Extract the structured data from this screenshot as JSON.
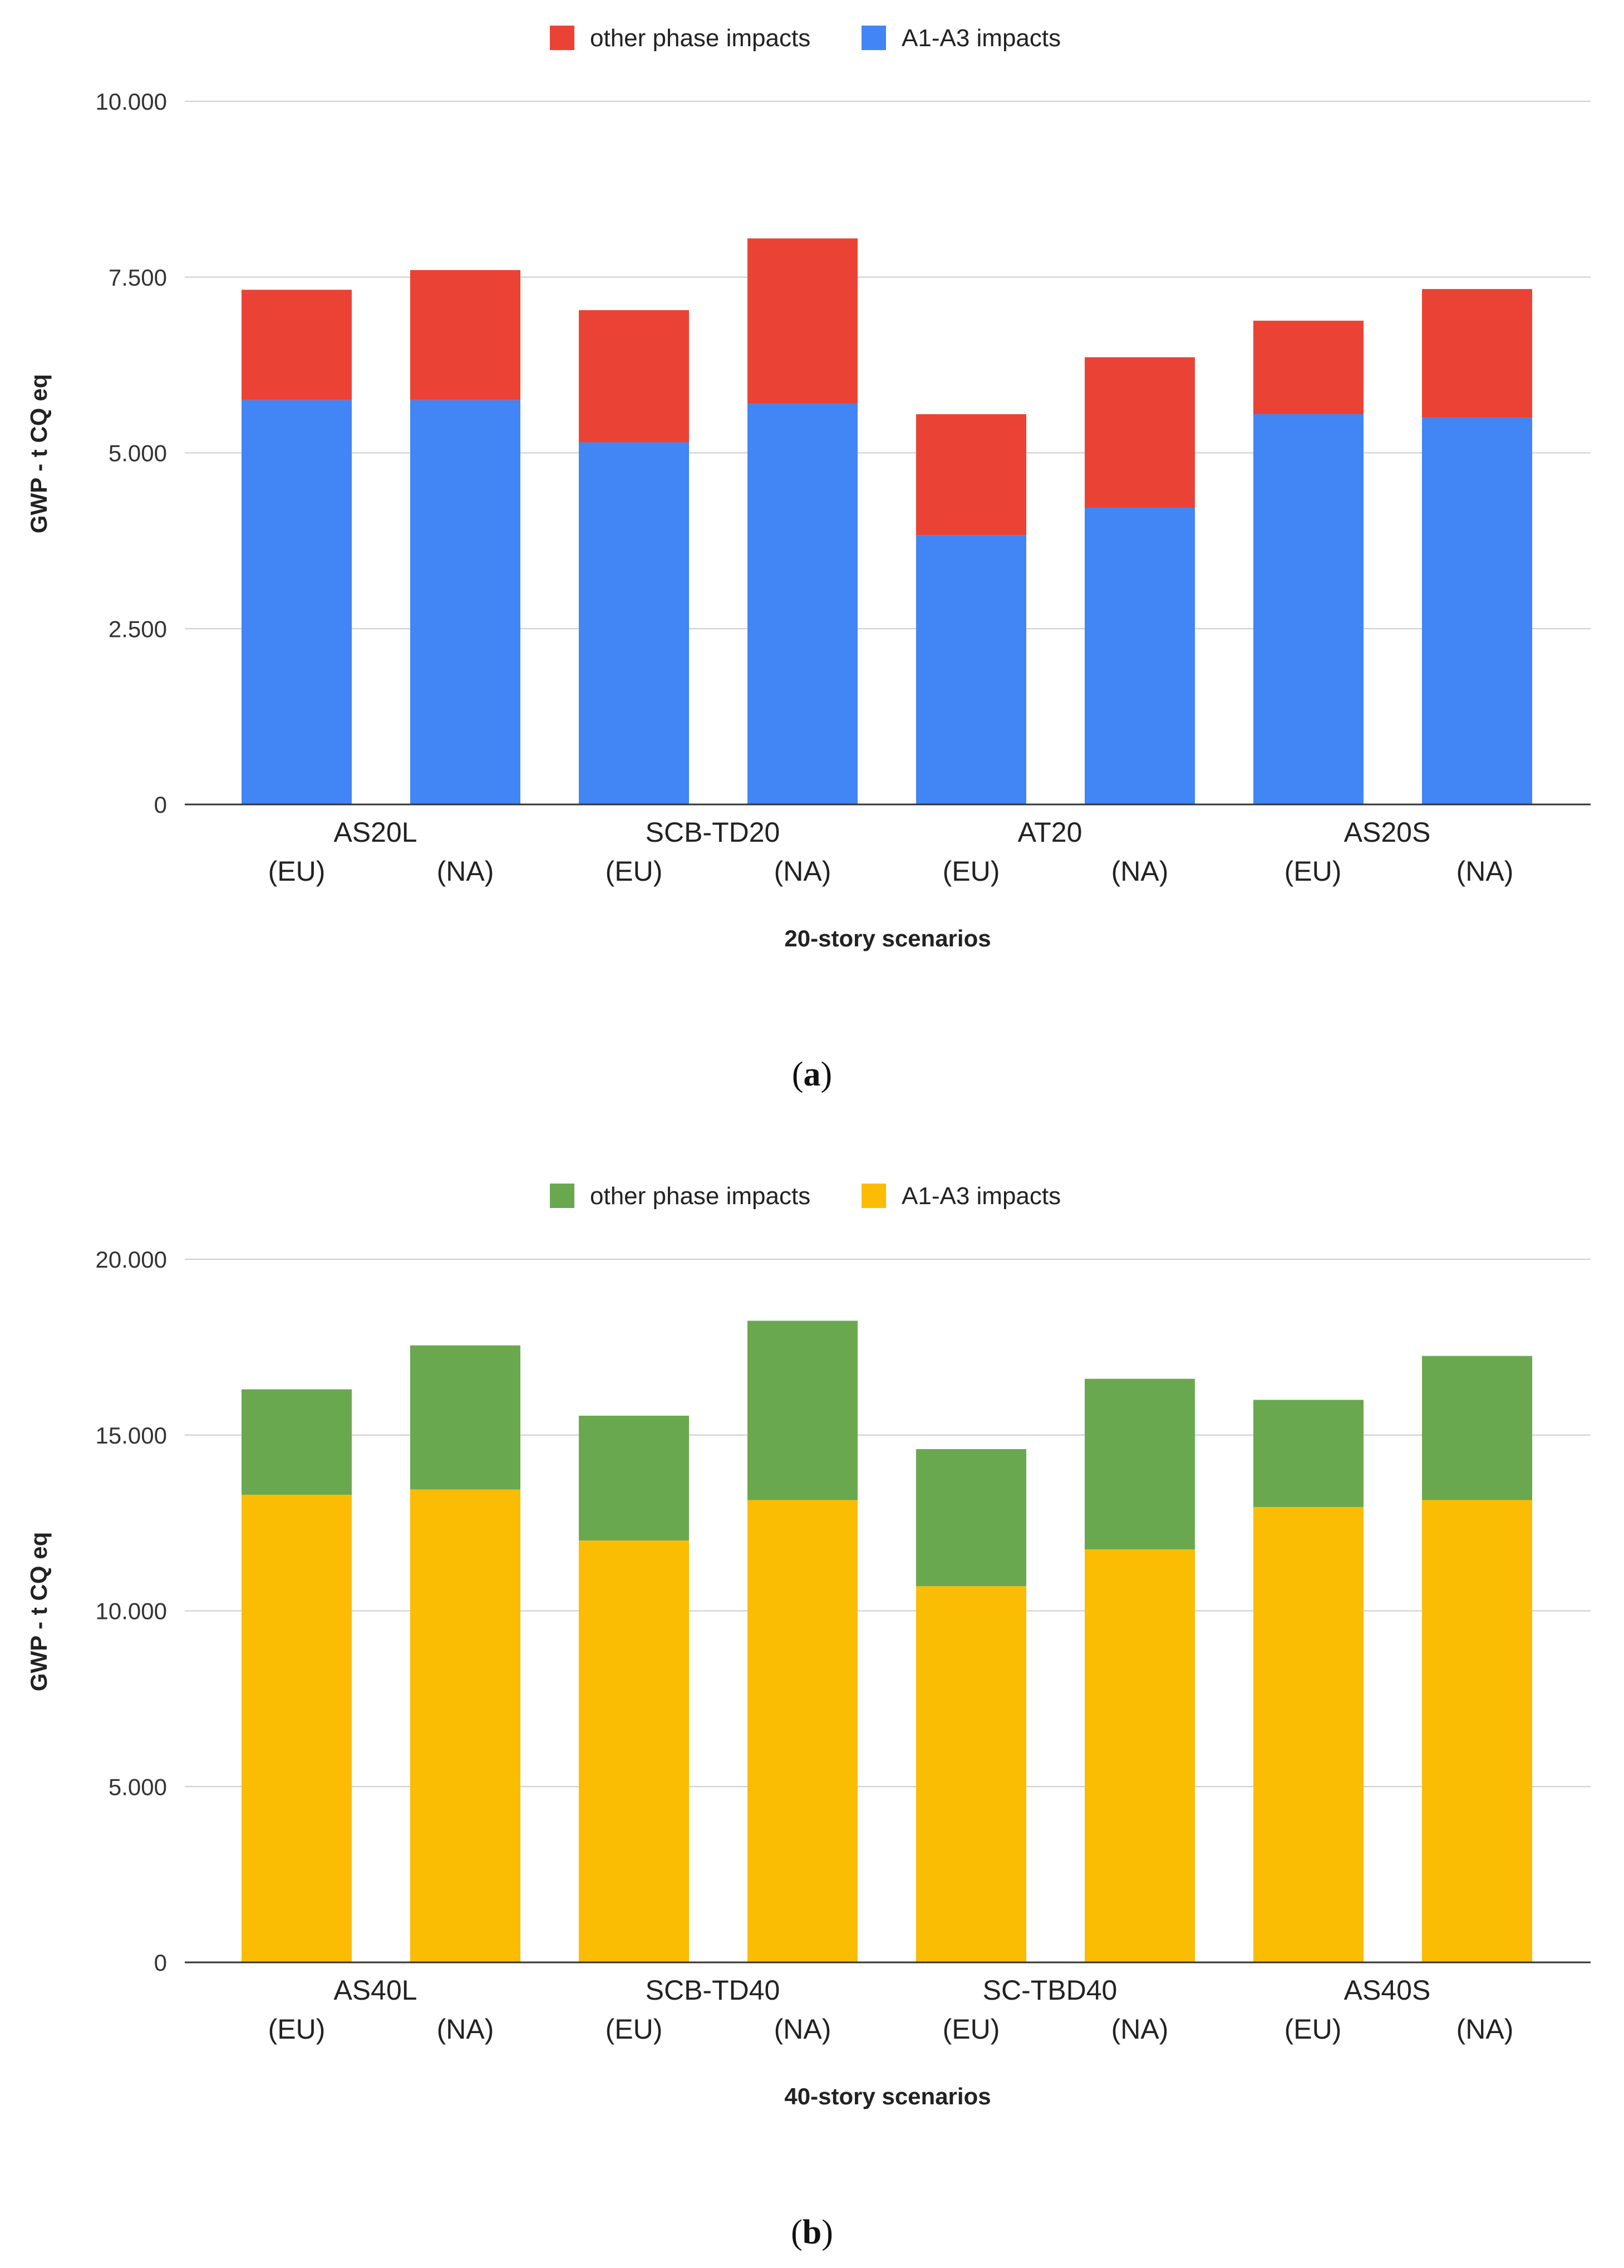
{
  "chart_data": [
    {
      "type": "bar",
      "stacked": true,
      "panel_label": "a",
      "legend": {
        "position": "top",
        "entries": [
          "other phase impacts",
          "A1-A3 impacts"
        ]
      },
      "xlabel": "20-story scenarios",
      "ylabel": "GWP - t CQ eq",
      "ylim": [
        0,
        10000
      ],
      "yticks": [
        0,
        2500,
        5000,
        7500,
        10000
      ],
      "ytick_labels": [
        "0",
        "2.500",
        "5.000",
        "7.500",
        "10.000"
      ],
      "grid": true,
      "groups": [
        "AS20L",
        "SCB-TD20",
        "AT20",
        "AS20S"
      ],
      "categories": [
        "(EU)",
        "(NA)",
        "(EU)",
        "(NA)",
        "(EU)",
        "(NA)",
        "(EU)",
        "(NA)"
      ],
      "series": [
        {
          "name": "A1-A3 impacts",
          "color": "#4285f4",
          "values": [
            5750,
            5750,
            5150,
            5700,
            3830,
            4220,
            5550,
            5500
          ]
        },
        {
          "name": "other phase impacts",
          "color": "#ea4335",
          "values": [
            1570,
            1850,
            1880,
            2350,
            1720,
            2140,
            1330,
            1830
          ]
        }
      ]
    },
    {
      "type": "bar",
      "stacked": true,
      "panel_label": "b",
      "legend": {
        "position": "top",
        "entries": [
          "other phase impacts",
          "A1-A3 impacts"
        ]
      },
      "xlabel": "40-story scenarios",
      "ylabel": "GWP - t CQ eq",
      "ylim": [
        0,
        20000
      ],
      "yticks": [
        0,
        5000,
        10000,
        15000,
        20000
      ],
      "ytick_labels": [
        "0",
        "5.000",
        "10.000",
        "15.000",
        "20.000"
      ],
      "grid": true,
      "groups": [
        "AS40L",
        "SCB-TD40",
        "SC-TBD40",
        "AS40S"
      ],
      "categories": [
        "(EU)",
        "(NA)",
        "(EU)",
        "(NA)",
        "(EU)",
        "(NA)",
        "(EU)",
        "(NA)"
      ],
      "series": [
        {
          "name": "A1-A3 impacts",
          "color": "#fbbc04",
          "values": [
            13300,
            13450,
            12000,
            13150,
            10700,
            11750,
            12950,
            13150
          ]
        },
        {
          "name": "other phase impacts",
          "color": "#6aa84f",
          "values": [
            3000,
            4100,
            3550,
            5100,
            3900,
            4850,
            3050,
            4100
          ]
        }
      ]
    }
  ]
}
